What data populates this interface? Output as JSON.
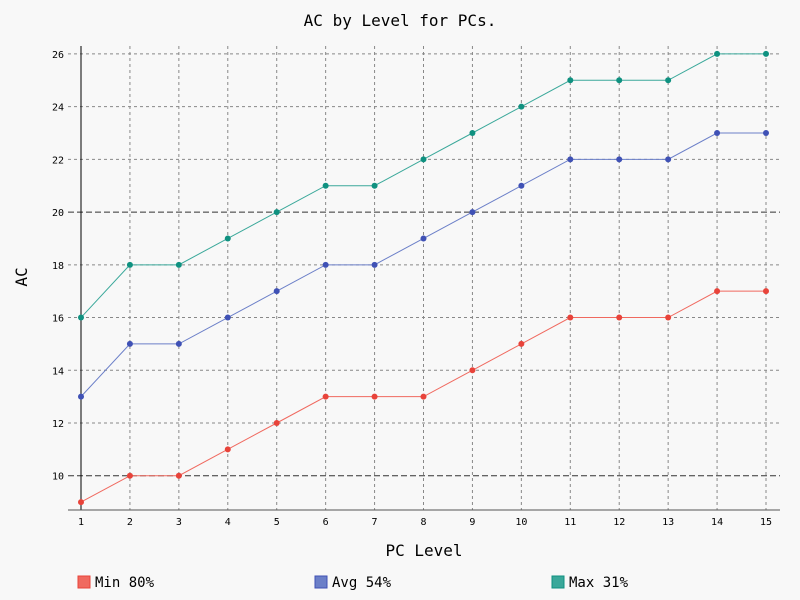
{
  "chart_data": {
    "type": "line",
    "title": "AC by Level for PCs.",
    "xlabel": "PC Level",
    "ylabel": "AC",
    "x": [
      1,
      2,
      3,
      4,
      5,
      6,
      7,
      8,
      9,
      10,
      11,
      12,
      13,
      14,
      15
    ],
    "xlim": [
      1,
      15
    ],
    "ylim": [
      8.7,
      26.3
    ],
    "yticks": [
      10,
      12,
      14,
      16,
      18,
      20,
      22,
      24,
      26
    ],
    "major_y_gridlines": [
      10,
      20
    ],
    "grid": true,
    "legend_position": "bottom",
    "series": [
      {
        "name": "Min 80%",
        "color": "#f0695f",
        "marker_color": "#e8433a",
        "values": [
          9,
          10,
          10,
          11,
          12,
          13,
          13,
          13,
          14,
          15,
          16,
          16,
          16,
          17,
          17
        ]
      },
      {
        "name": "Avg 54%",
        "color": "#6b7fc8",
        "marker_color": "#3f51b5",
        "values": [
          13,
          15,
          15,
          16,
          17,
          18,
          18,
          19,
          20,
          21,
          22,
          22,
          22,
          23,
          23
        ]
      },
      {
        "name": "Max 31%",
        "color": "#3aa89a",
        "marker_color": "#0f9180",
        "values": [
          16,
          18,
          18,
          19,
          20,
          21,
          21,
          22,
          23,
          24,
          25,
          25,
          25,
          26,
          26
        ]
      }
    ]
  }
}
